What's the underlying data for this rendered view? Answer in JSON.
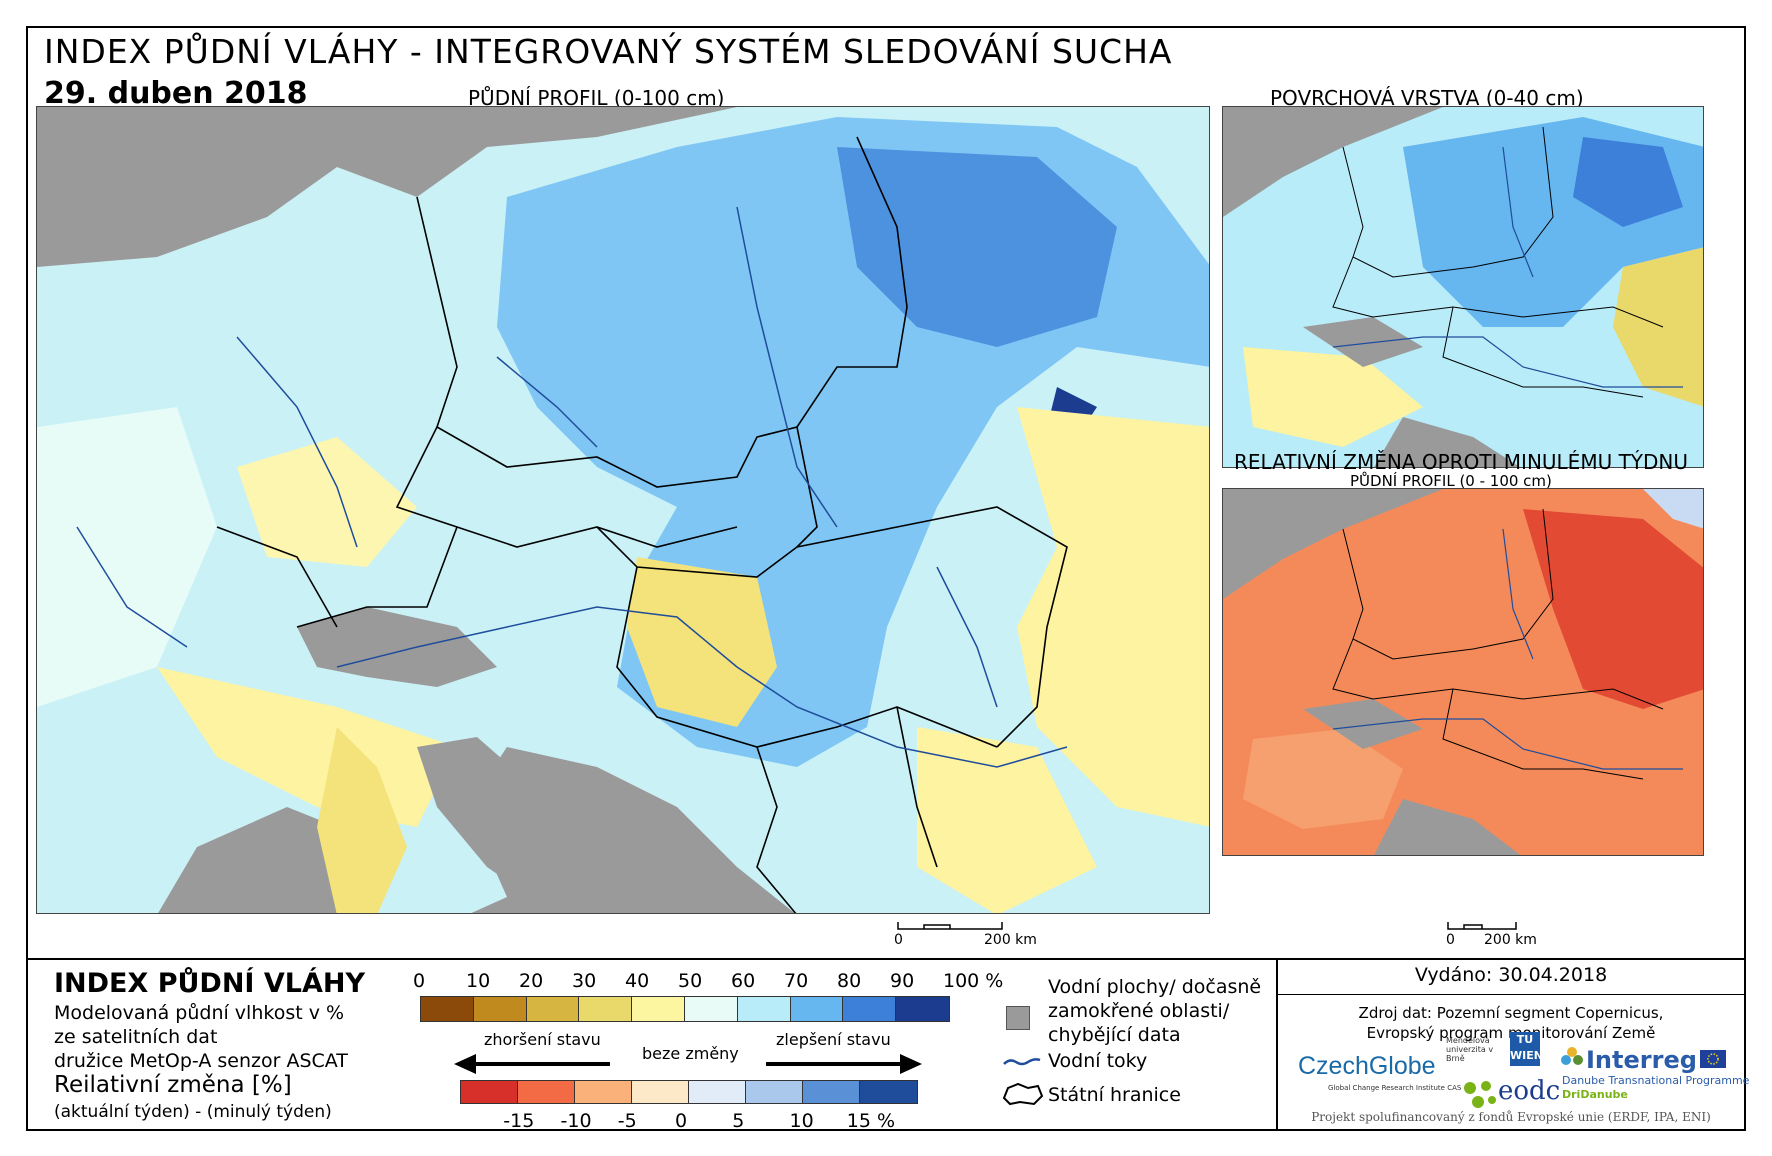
{
  "header": {
    "title": "INDEX PŮDNÍ VLÁHY - INTEGROVANÝ SYSTÉM SLEDOVÁNÍ SUCHA",
    "date": "29. duben 2018"
  },
  "maps": {
    "main_caption": "PŮDNÍ PROFIL (0-100 cm)",
    "surface_caption": "POVRCHOVÁ VRSTVA (0-40 cm)",
    "change_caption": "RELATIVNÍ ZMĚNA OPROTI MINULÉMU TÝDNU",
    "change_subcaption": "PŮDNÍ PROFIL (0 - 100 cm)",
    "scale_zero": "0",
    "scale_label": "200 km"
  },
  "legend": {
    "title": "INDEX PŮDNÍ VLÁHY",
    "line1": "Modelovaná půdní vlhkost v %",
    "line2": "ze satelitních dat",
    "line3": "družice MetOp-A senzor ASCAT",
    "change_title": "Reilativní změna [%]",
    "change_sub": "(aktuální týden) - (minulý týden)",
    "index_ticks": [
      "0",
      "10",
      "20",
      "30",
      "40",
      "50",
      "60",
      "70",
      "80",
      "90",
      "100 %"
    ],
    "index_colors": [
      "#8b4a0a",
      "#c08a1e",
      "#d6b640",
      "#e9d86a",
      "#fdf6a0",
      "#e8fbf7",
      "#b8ecf8",
      "#66b6f0",
      "#3d80d9",
      "#1b3c8f"
    ],
    "change_ticks": [
      "-15",
      "-10",
      "-5",
      "0",
      "5",
      "10",
      "15 %"
    ],
    "change_colors": [
      "#d7302b",
      "#f26b45",
      "#fbb27a",
      "#fde8c8",
      "#e2ecf8",
      "#a9c8ec",
      "#5a90d6",
      "#1f4d9c"
    ],
    "worse_label": "zhoršení stavu",
    "nochange_label": "beze změny",
    "better_label": "zlepšení stavu",
    "water_label_1": "Vodní plochy/ dočasně",
    "water_label_2": "zamokřené oblasti/",
    "water_label_3": "chybějící data",
    "rivers_label": "Vodní toky",
    "borders_label": "Státní hranice"
  },
  "info": {
    "issued": "Vydáno: 30.04.2018",
    "source_1": "Zdroj dat: Pozemní segment Copernicus,",
    "source_2": "Evropský program monitorování Země",
    "logo_czechglobe": "CzechGlobe",
    "logo_czechglobe_sub": "Global Change Research Institute CAS",
    "logo_mendel": "Mendelova univerzita v Brně",
    "logo_tu": "TU WIEN",
    "logo_eodc": "eodc",
    "logo_interreg": "Interreg",
    "logo_interreg_sub": "Danube Transnational Programme",
    "logo_dridanube": "DriDanube",
    "footer": "Projekt spolufinancovaný z fondů Evropské unie (ERDF, IPA, ENI)"
  }
}
